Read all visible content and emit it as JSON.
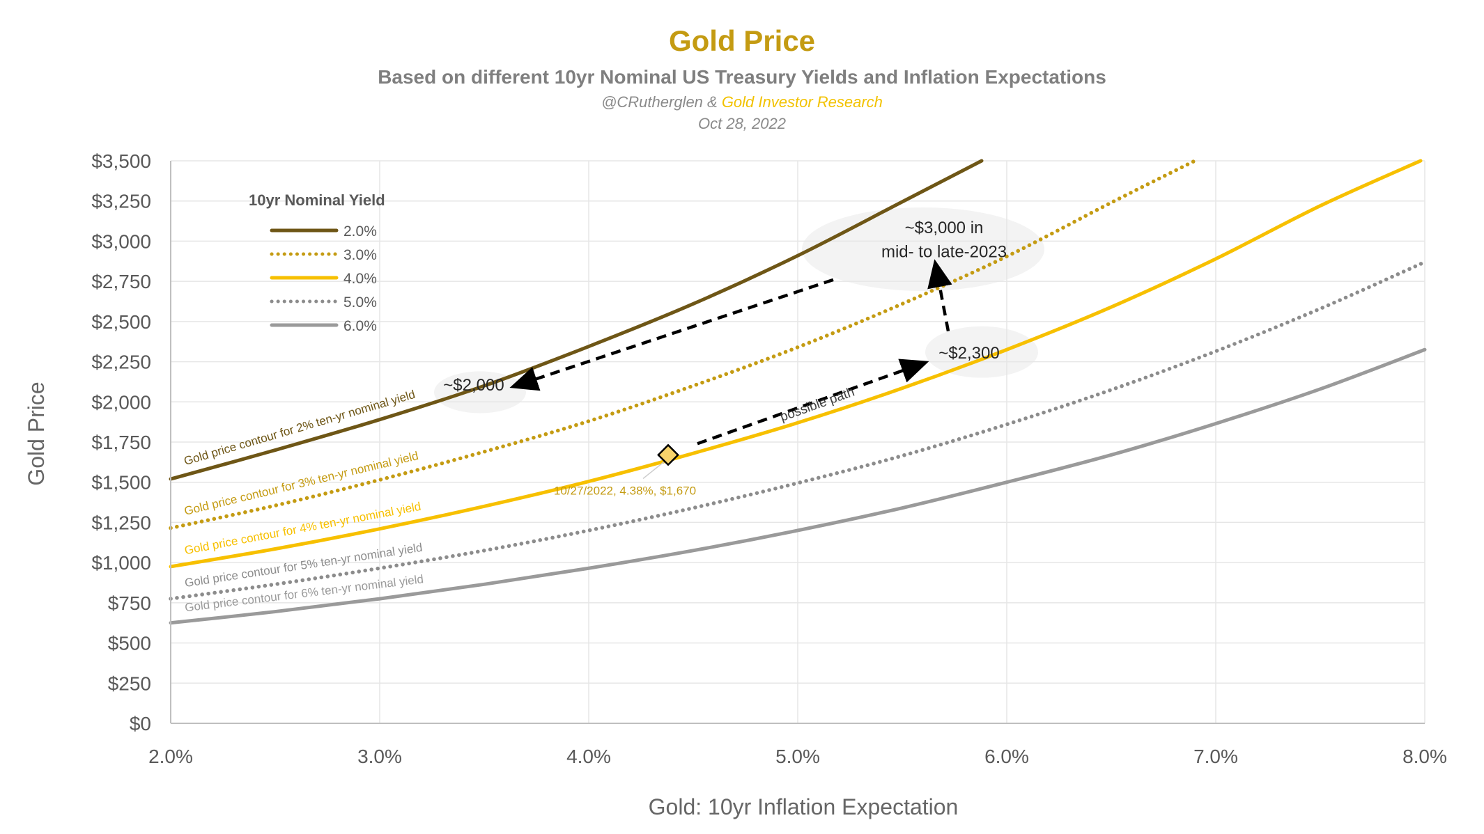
{
  "chart_data": {
    "type": "line",
    "title": "Gold Price",
    "subtitle": "Based on different 10yr Nominal US Treasury Yields and Inflation Expectations",
    "credit_prefix": "@CRutherglen & ",
    "credit_source": "Gold Investor Research",
    "date": "Oct 28, 2022",
    "xlabel": "Gold: 10yr Inflation Expectation",
    "ylabel": "Gold Price",
    "xlim": [
      2.0,
      8.0
    ],
    "ylim": [
      0,
      3500
    ],
    "x_ticks": [
      {
        "value": 2.0,
        "label": "2.0%"
      },
      {
        "value": 3.0,
        "label": "3.0%"
      },
      {
        "value": 4.0,
        "label": "4.0%"
      },
      {
        "value": 5.0,
        "label": "5.0%"
      },
      {
        "value": 6.0,
        "label": "6.0%"
      },
      {
        "value": 7.0,
        "label": "7.0%"
      },
      {
        "value": 8.0,
        "label": "8.0%"
      }
    ],
    "y_ticks": [
      {
        "value": 0,
        "label": "$0"
      },
      {
        "value": 250,
        "label": "$250"
      },
      {
        "value": 500,
        "label": "$500"
      },
      {
        "value": 750,
        "label": "$750"
      },
      {
        "value": 1000,
        "label": "$1,000"
      },
      {
        "value": 1250,
        "label": "$1,250"
      },
      {
        "value": 1500,
        "label": "$1,500"
      },
      {
        "value": 1750,
        "label": "$1,750"
      },
      {
        "value": 2000,
        "label": "$2,000"
      },
      {
        "value": 2250,
        "label": "$2,250"
      },
      {
        "value": 2500,
        "label": "$2,500"
      },
      {
        "value": 2750,
        "label": "$2,750"
      },
      {
        "value": 3000,
        "label": "$3,000"
      },
      {
        "value": 3250,
        "label": "$3,250"
      },
      {
        "value": 3500,
        "label": "$3,500"
      }
    ],
    "grid": "vertical and horizontal, light gray",
    "legend": {
      "title": "10yr Nominal Yield",
      "placement": "top-left"
    },
    "series": [
      {
        "name": "2.0%",
        "color": "#6e5616",
        "style": "solid",
        "contour_label": "Gold price contour for 2% ten-yr nominal yield",
        "x": [
          2.0,
          2.5,
          3.0,
          3.5,
          4.0,
          4.5,
          5.0,
          5.5,
          5.88
        ],
        "values": [
          1520,
          1700,
          1890,
          2100,
          2345,
          2610,
          2910,
          3245,
          3500
        ]
      },
      {
        "name": "3.0%",
        "color": "#c49b12",
        "style": "dotted",
        "contour_label": "Gold price contour for 3% ten-yr nominal yield",
        "x": [
          2.0,
          2.5,
          3.0,
          3.5,
          4.0,
          4.5,
          5.0,
          5.5,
          6.0,
          6.5,
          6.9
        ],
        "values": [
          1215,
          1355,
          1515,
          1690,
          1880,
          2100,
          2340,
          2610,
          2905,
          3240,
          3500
        ]
      },
      {
        "name": "4.0%",
        "color": "#f7c000",
        "style": "solid",
        "contour_label": "Gold price contour for 4% ten-yr nominal yield",
        "x": [
          2.0,
          2.5,
          3.0,
          3.5,
          4.0,
          4.5,
          5.0,
          5.5,
          6.0,
          6.5,
          7.0,
          7.5,
          7.98
        ],
        "values": [
          975,
          1085,
          1210,
          1350,
          1505,
          1680,
          1870,
          2085,
          2325,
          2590,
          2890,
          3220,
          3500
        ]
      },
      {
        "name": "5.0%",
        "color": "#8c8c8c",
        "style": "dotted",
        "contour_label": "Gold price contour for 5% ten-yr nominal yield",
        "x": [
          2.0,
          2.5,
          3.0,
          3.5,
          4.0,
          4.5,
          5.0,
          5.5,
          6.0,
          6.5,
          7.0,
          7.5,
          8.0
        ],
        "values": [
          775,
          865,
          965,
          1075,
          1200,
          1340,
          1495,
          1665,
          1860,
          2075,
          2315,
          2580,
          2870
        ]
      },
      {
        "name": "6.0%",
        "color": "#9a9a9a",
        "style": "solid",
        "contour_label": "Gold price contour for 6% ten-yr nominal yield",
        "x": [
          2.0,
          2.5,
          3.0,
          3.5,
          4.0,
          4.5,
          5.0,
          5.5,
          6.0,
          6.5,
          7.0,
          7.5,
          8.0
        ],
        "values": [
          625,
          695,
          775,
          865,
          965,
          1075,
          1200,
          1340,
          1500,
          1670,
          1865,
          2080,
          2325
        ]
      }
    ],
    "current_point": {
      "x": 4.38,
      "y": 1670,
      "label": "10/27/2022, 4.38%, $1,670"
    },
    "annotations": [
      {
        "text": "~$2,000",
        "x": 3.45,
        "y": 2070
      },
      {
        "text": "~$2,300",
        "x": 5.82,
        "y": 2270
      },
      {
        "text": "~$3,000 in",
        "x": 5.7,
        "y": 3050
      },
      {
        "text": "mid- to late-2023",
        "x": 5.7,
        "y": 2900
      },
      {
        "text": "possible path",
        "x": 5.1,
        "y": 1960
      }
    ],
    "arrows": [
      {
        "from": [
          4.52,
          1740
        ],
        "to": [
          5.6,
          2240
        ]
      },
      {
        "from": [
          5.72,
          2440
        ],
        "to": [
          5.66,
          2850
        ]
      },
      {
        "from": [
          5.17,
          2760
        ],
        "to": [
          3.65,
          2100
        ]
      }
    ],
    "highlight_ellipses": [
      {
        "cx": 3.48,
        "cy": 2060,
        "rx": 0.22,
        "ry": 130
      },
      {
        "cx": 5.88,
        "cy": 2310,
        "rx": 0.27,
        "ry": 160
      },
      {
        "cx": 5.6,
        "cy": 2950,
        "rx": 0.58,
        "ry": 260
      }
    ]
  }
}
